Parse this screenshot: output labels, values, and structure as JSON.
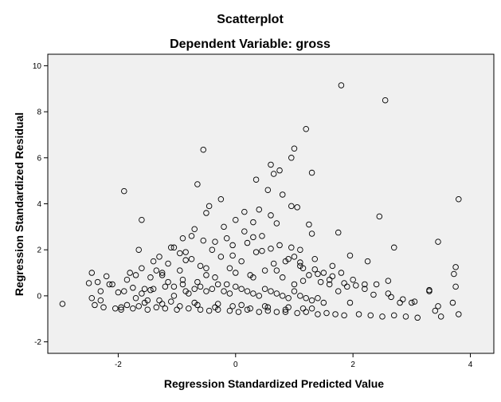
{
  "chart_data": {
    "type": "scatter",
    "title": "Scatterplot",
    "subtitle": "Dependent Variable: gross",
    "xlabel": "Regression Standardized Predicted Value",
    "ylabel": "Regression Standardized Residual",
    "xlim": [
      -3.2,
      4.4
    ],
    "ylim": [
      -2.5,
      10.5
    ],
    "xticks": [
      -2,
      0,
      2,
      4
    ],
    "xtick_labels": [
      "-2",
      "0",
      "2",
      "4"
    ],
    "yticks": [
      -2,
      0,
      2,
      4,
      6,
      8,
      10
    ],
    "ytick_labels": [
      "-2",
      "0",
      "2",
      "4",
      "6",
      "8",
      "10"
    ],
    "grid": false,
    "plot_background": "#f0f0f0",
    "marker": "open-circle",
    "series": [
      {
        "x": [
          -2.95,
          -2.5,
          -2.45,
          -2.4,
          -2.35,
          -2.3,
          -2.25,
          -2.2,
          -2.1,
          -2.05,
          -2.0,
          -1.95,
          -1.9,
          -1.85,
          -1.8,
          -1.75,
          -1.7,
          -1.65,
          -1.6,
          -1.55,
          -1.5,
          -1.45,
          -1.4,
          -1.35,
          -1.3,
          -1.25,
          -1.2,
          -1.15,
          -1.1,
          -1.05,
          -1.0,
          -0.95,
          -0.9,
          -0.85,
          -0.8,
          -0.75,
          -0.7,
          -0.65,
          -0.6,
          -0.55,
          -0.5,
          -0.45,
          -0.4,
          -0.35,
          -0.3,
          -0.25,
          -0.2,
          -0.15,
          -0.1,
          -0.05,
          0.0,
          0.05,
          0.1,
          0.15,
          0.2,
          0.25,
          0.3,
          0.35,
          0.4,
          0.45,
          0.5,
          0.55,
          0.6,
          0.65,
          0.7,
          0.75,
          0.8,
          0.85,
          0.9,
          0.95,
          1.0,
          1.05,
          1.1,
          1.15,
          1.2,
          1.25,
          1.3,
          1.35,
          1.4,
          1.45,
          1.5,
          1.55,
          1.6,
          1.65,
          1.7,
          1.75,
          1.8,
          1.85,
          1.9,
          1.95,
          2.0,
          2.1,
          2.2,
          2.3,
          2.4,
          2.5,
          2.6,
          2.7,
          2.8,
          2.9,
          3.0,
          3.1,
          3.3,
          3.4,
          3.5,
          3.7,
          3.75,
          3.8,
          -1.95,
          -1.7,
          -1.6,
          -1.4,
          -1.3,
          -1.2,
          -1.05,
          -0.9,
          -0.8,
          -0.7,
          -0.6,
          -0.5,
          -0.4,
          -0.3,
          -0.2,
          -0.1,
          0.0,
          0.1,
          0.2,
          0.3,
          0.4,
          0.5,
          0.6,
          0.7,
          0.8,
          0.9,
          1.0,
          1.1,
          1.2,
          1.3,
          1.4,
          1.5,
          -1.85,
          -1.55,
          -1.25,
          -0.95,
          -0.65,
          -0.35,
          -0.05,
          0.25,
          0.55,
          0.85,
          1.15,
          -1.5,
          -1.1,
          -0.7,
          -0.3,
          0.1,
          0.5,
          0.9,
          1.3,
          -0.9,
          -0.5,
          -0.1,
          0.3,
          0.7,
          1.1,
          1.8,
          2.55,
          1.2,
          1.0,
          -0.55,
          0.95,
          0.6,
          0.65,
          0.75,
          -1.9,
          -0.65,
          0.35,
          1.3,
          0.8,
          1.05,
          0.4,
          -0.45,
          -0.5,
          2.45,
          3.8,
          3.45,
          2.7,
          1.75,
          1.95,
          2.25,
          0.55,
          -0.25,
          0.0,
          -1.6,
          -1.05,
          -0.85,
          0.15,
          0.7,
          1.25,
          -0.75,
          3.75,
          3.72,
          3.3,
          2.6,
          2.2,
          1.6,
          1.4,
          1.15,
          -0.15,
          -0.35,
          -2.45,
          -2.3,
          -2.15,
          -1.75,
          -1.45,
          -1.25,
          -1.15,
          -0.95,
          -0.85,
          0.45,
          0.85,
          1.35,
          1.65,
          1.85,
          2.05,
          2.35,
          2.65,
          2.85,
          3.05,
          3.45,
          -0.05,
          0.2,
          0.6,
          1.0,
          -0.6,
          -1.35,
          -1.65,
          0.95,
          1.1,
          0.3
        ],
        "y": [
          -0.35,
          0.55,
          1.0,
          -0.4,
          0.6,
          -0.2,
          -0.5,
          0.85,
          0.5,
          -0.55,
          0.15,
          -0.5,
          0.2,
          0.7,
          1.0,
          -0.55,
          0.9,
          -0.45,
          1.2,
          0.3,
          -0.6,
          0.8,
          1.5,
          -0.5,
          1.7,
          0.9,
          -0.55,
          1.4,
          2.1,
          0.4,
          -0.6,
          1.1,
          2.5,
          0.2,
          -0.55,
          1.6,
          2.9,
          0.6,
          -0.6,
          2.4,
          1.2,
          -0.65,
          2.0,
          0.8,
          -0.6,
          1.7,
          3.0,
          0.5,
          -0.65,
          2.2,
          1.0,
          -0.7,
          1.5,
          2.8,
          -0.6,
          0.9,
          3.2,
          1.9,
          -0.7,
          2.6,
          1.1,
          -0.65,
          3.5,
          1.4,
          -0.7,
          2.2,
          0.8,
          -0.7,
          1.6,
          3.9,
          0.5,
          -0.75,
          2.0,
          1.2,
          -0.7,
          0.9,
          2.7,
          1.6,
          -0.8,
          0.6,
          1.0,
          -0.75,
          0.5,
          1.3,
          -0.8,
          0.2,
          1.0,
          -0.85,
          0.4,
          -0.3,
          0.7,
          -0.8,
          0.3,
          -0.85,
          0.5,
          -0.9,
          0.1,
          -0.85,
          -0.3,
          -0.9,
          -0.3,
          -0.95,
          0.2,
          -0.65,
          -0.9,
          -0.3,
          0.4,
          -0.8,
          -0.6,
          -0.1,
          0.1,
          0.3,
          -0.2,
          0.4,
          0.0,
          0.5,
          0.1,
          0.3,
          0.4,
          0.2,
          0.3,
          0.5,
          0.2,
          0.1,
          0.4,
          0.3,
          0.2,
          0.1,
          0.0,
          0.3,
          0.2,
          0.1,
          0.0,
          -0.1,
          0.2,
          0.0,
          -0.1,
          -0.2,
          -0.1,
          -0.3,
          -0.4,
          -0.3,
          -0.35,
          -0.45,
          -0.4,
          -0.5,
          -0.45,
          -0.55,
          -0.5,
          -0.6,
          -0.55,
          -0.2,
          -0.25,
          -0.3,
          -0.35,
          -0.4,
          -0.45,
          -0.5,
          -0.55,
          0.7,
          0.9,
          1.2,
          0.8,
          1.1,
          1.3,
          9.15,
          8.5,
          7.25,
          6.4,
          6.35,
          6.0,
          5.7,
          5.3,
          5.45,
          4.55,
          4.85,
          5.05,
          5.35,
          4.4,
          3.85,
          3.75,
          3.9,
          3.6,
          3.45,
          4.2,
          2.35,
          2.1,
          2.75,
          1.75,
          1.5,
          4.6,
          4.2,
          3.3,
          3.3,
          2.1,
          1.9,
          3.65,
          3.15,
          3.1,
          2.6,
          1.25,
          0.95,
          0.25,
          0.65,
          0.5,
          0.7,
          0.95,
          0.65,
          2.5,
          2.35,
          -0.1,
          0.2,
          0.5,
          0.35,
          0.25,
          1.0,
          0.6,
          1.85,
          1.55,
          1.95,
          1.5,
          1.15,
          0.85,
          0.55,
          0.45,
          0.05,
          -0.05,
          -0.15,
          -0.25,
          -0.45,
          1.75,
          2.3,
          2.05,
          1.7,
          1.3,
          1.1,
          2.0,
          2.1,
          1.45,
          2.55
        ]
      }
    ]
  }
}
